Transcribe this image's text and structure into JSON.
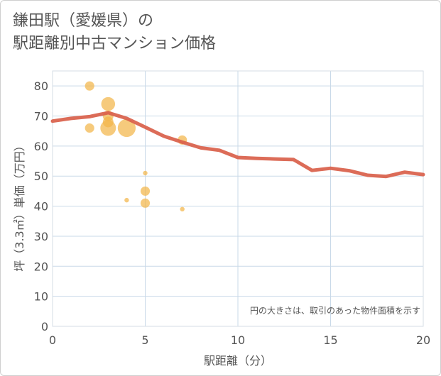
{
  "title": {
    "line1": "鎌田駅（愛媛県）の",
    "line2": "駅距離別中古マンション価格"
  },
  "chart_data": {
    "type": "scatter",
    "title": "鎌田駅（愛媛県）の駅距離別中古マンション価格",
    "xlabel": "駅距離（分）",
    "ylabel": "坪（3.3㎡）単価（万円）",
    "xlim": [
      0,
      20
    ],
    "ylim": [
      0,
      85
    ],
    "xticks": [
      "0",
      "5",
      "10",
      "15",
      "20"
    ],
    "yticks": [
      "0",
      "10",
      "20",
      "30",
      "40",
      "50",
      "60",
      "70",
      "80"
    ],
    "annotation": "円の大きさは、取引のあった物件面積を示す",
    "colors": {
      "bubble": "#f3b54a",
      "line": "#d9604a",
      "grid": "#c9d9e8"
    },
    "bubbles": [
      {
        "x": 2,
        "y": 80,
        "size": 3
      },
      {
        "x": 2,
        "y": 66,
        "size": 3
      },
      {
        "x": 3,
        "y": 74,
        "size": 7
      },
      {
        "x": 3,
        "y": 70,
        "size": 4
      },
      {
        "x": 3,
        "y": 68,
        "size": 4
      },
      {
        "x": 3,
        "y": 66,
        "size": 9
      },
      {
        "x": 4,
        "y": 66,
        "size": 12
      },
      {
        "x": 4,
        "y": 42,
        "size": 0.6
      },
      {
        "x": 5,
        "y": 51,
        "size": 0.6
      },
      {
        "x": 5,
        "y": 45,
        "size": 3
      },
      {
        "x": 5,
        "y": 41,
        "size": 3
      },
      {
        "x": 7,
        "y": 62,
        "size": 3
      },
      {
        "x": 7,
        "y": 39,
        "size": 0.6
      }
    ],
    "trend": {
      "x": [
        0,
        1,
        2,
        3,
        4,
        5,
        6,
        7,
        8,
        9,
        10,
        11,
        12,
        13,
        14,
        15,
        16,
        17,
        18,
        19,
        20
      ],
      "y": [
        68.3,
        69.2,
        69.8,
        71.1,
        69.2,
        66.3,
        63.3,
        61.3,
        59.4,
        58.6,
        56.2,
        55.9,
        55.7,
        55.5,
        51.9,
        52.6,
        51.8,
        50.3,
        49.9,
        51.3,
        50.5
      ]
    }
  }
}
